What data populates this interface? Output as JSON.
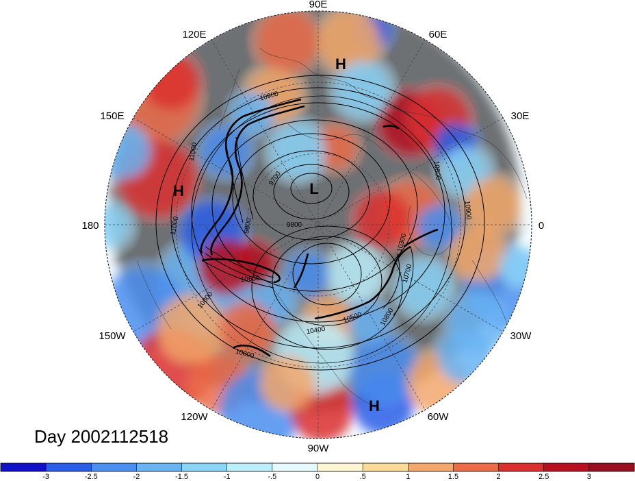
{
  "lon_labels": {
    "e90": "90E",
    "e60": "60E",
    "e30": "30E",
    "zero": "0",
    "w30": "30W",
    "w60": "60W",
    "w90": "90W",
    "w120": "120W",
    "w150": "150W",
    "deg180": "180",
    "e150": "150E",
    "e120": "120E"
  },
  "pressure_centers": {
    "h_top": "H",
    "h_left": "H",
    "h_bottom": "H",
    "l_center": "L"
  },
  "contour_labels": {
    "c1": "10900",
    "c2": "11000",
    "c3": "9700",
    "c4": "9800",
    "c5": "9800",
    "c6": "11000",
    "c7": "10600",
    "c8": "10800",
    "c9": "10800",
    "c10": "10900",
    "c11": "10300",
    "c12": "10700",
    "c13": "10500",
    "c14": "10400",
    "c15": "10800",
    "c16": "10800"
  },
  "date_label": "Day 2002112518",
  "colorbar": {
    "ticks": [
      "-3",
      "-2.5",
      "-2",
      "-1.5",
      "-1",
      "-.5",
      "0",
      ".5",
      "1",
      "1.5",
      "2",
      "2.5",
      "3"
    ],
    "colors": [
      "#1010c8",
      "#2a5ee8",
      "#4a8ef0",
      "#6ab4f4",
      "#8cd4f8",
      "#bceefc",
      "#e6fafe",
      "#fdf6d4",
      "#f8dc98",
      "#f4a86c",
      "#ec6c48",
      "#dc3030",
      "#b81020",
      "#981020"
    ]
  },
  "colors": {
    "neg": "#6ab4f4",
    "pos": "#ec6c48",
    "contour": "#000000"
  }
}
